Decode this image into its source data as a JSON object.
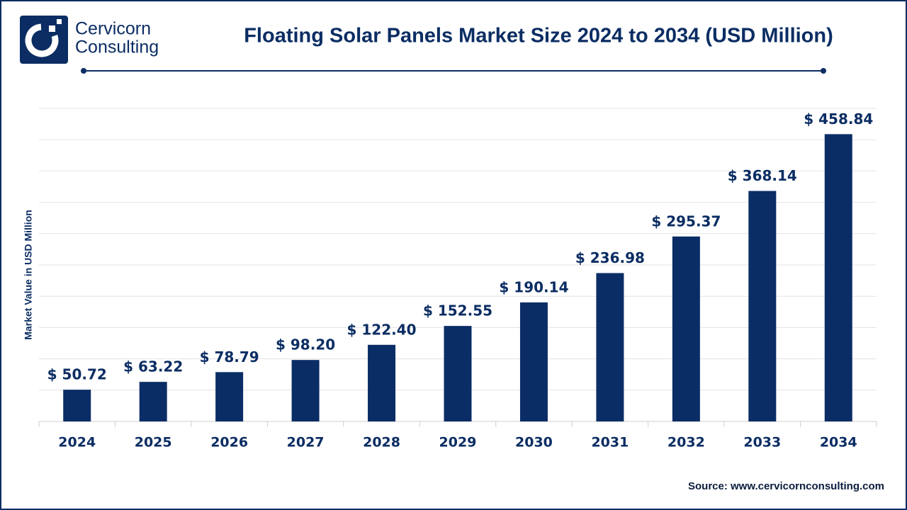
{
  "brand": {
    "line1": "Cervicorn",
    "line2": "Consulting"
  },
  "source": "Source: www.cervicornconsulting.com",
  "chart_data": {
    "type": "bar",
    "title": "Floating Solar Panels Market Size 2024 to 2034 (USD Million)",
    "y_label": "Market Value in USD Million",
    "categories": [
      "2024",
      "2025",
      "2026",
      "2027",
      "2028",
      "2029",
      "2030",
      "2031",
      "2032",
      "2033",
      "2034"
    ],
    "values": [
      50.72,
      63.22,
      78.79,
      98.2,
      122.4,
      152.55,
      190.14,
      236.98,
      295.37,
      368.14,
      458.84
    ],
    "value_labels": [
      "$ 50.72",
      "$ 63.22",
      "$ 78.79",
      "$ 98.20",
      "$ 122.40",
      "$ 152.55",
      "$ 190.14",
      "$ 236.98",
      "$ 295.37",
      "$ 368.14",
      "$ 458.84"
    ],
    "color": "#0b2d66",
    "ylim": [
      0,
      500
    ],
    "yticks": [
      0,
      50,
      100,
      150,
      200,
      250,
      300,
      350,
      400,
      450,
      500
    ],
    "grid": true
  }
}
